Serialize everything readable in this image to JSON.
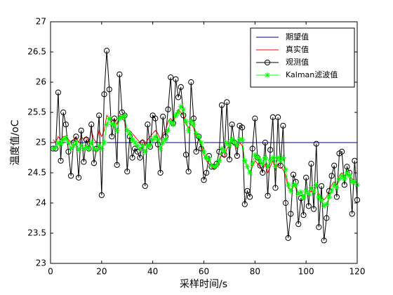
{
  "chart_data": {
    "type": "line",
    "xlabel": "采样时间/s",
    "ylabel": "温度值/oC",
    "x": [
      1,
      2,
      3,
      4,
      5,
      6,
      7,
      8,
      9,
      10,
      11,
      12,
      13,
      14,
      15,
      16,
      17,
      18,
      19,
      20,
      21,
      22,
      23,
      24,
      25,
      26,
      27,
      28,
      29,
      30,
      31,
      32,
      33,
      34,
      35,
      36,
      37,
      38,
      39,
      40,
      41,
      42,
      43,
      44,
      45,
      46,
      47,
      48,
      49,
      50,
      51,
      52,
      53,
      54,
      55,
      56,
      57,
      58,
      59,
      60,
      61,
      62,
      63,
      64,
      65,
      66,
      67,
      68,
      69,
      70,
      71,
      72,
      73,
      74,
      75,
      76,
      77,
      78,
      79,
      80,
      81,
      82,
      83,
      84,
      85,
      86,
      87,
      88,
      89,
      90,
      91,
      92,
      93,
      94,
      95,
      96,
      97,
      98,
      99,
      100,
      101,
      102,
      103,
      104,
      105,
      106,
      107,
      108,
      109,
      110,
      111,
      112,
      113,
      114,
      115,
      116,
      117,
      118,
      119,
      120
    ],
    "series": [
      {
        "name": "期望值",
        "color": "#00008b",
        "marker": "none",
        "values": [
          25,
          25,
          25,
          25,
          25,
          25,
          25,
          25,
          25,
          25,
          25,
          25,
          25,
          25,
          25,
          25,
          25,
          25,
          25,
          25,
          25,
          25,
          25,
          25,
          25,
          25,
          25,
          25,
          25,
          25,
          25,
          25,
          25,
          25,
          25,
          25,
          25,
          25,
          25,
          25,
          25,
          25,
          25,
          25,
          25,
          25,
          25,
          25,
          25,
          25,
          25,
          25,
          25,
          25,
          25,
          25,
          25,
          25,
          25,
          25,
          25,
          25,
          25,
          25,
          25,
          25,
          25,
          25,
          25,
          25,
          25,
          25,
          25,
          25,
          25,
          25,
          25,
          25,
          25,
          25,
          25,
          25,
          25,
          25,
          25,
          25,
          25,
          25,
          25,
          25,
          25,
          25,
          25,
          25,
          25,
          25,
          25,
          25,
          25,
          25,
          25,
          25,
          25,
          25,
          25,
          25,
          25,
          25,
          25,
          25,
          25,
          25,
          25,
          25,
          25,
          25,
          25,
          25,
          25,
          25
        ]
      },
      {
        "name": "真实值",
        "color": "#ff0000",
        "marker": "none",
        "values": [
          25.05,
          25.0,
          25.1,
          25.05,
          25.1,
          25.1,
          25.05,
          25.0,
          25.05,
          25.1,
          25.0,
          25.1,
          25.05,
          25.1,
          25.0,
          25.2,
          25.05,
          25.0,
          25.2,
          25.1,
          25.2,
          25.45,
          25.4,
          25.35,
          25.4,
          25.3,
          25.45,
          25.4,
          25.35,
          25.2,
          25.2,
          25.15,
          25.1,
          25.05,
          25.0,
          25.05,
          24.95,
          25.05,
          25.1,
          25.15,
          25.2,
          25.15,
          25.05,
          25.15,
          25.2,
          25.35,
          25.4,
          25.35,
          25.45,
          25.55,
          25.5,
          25.45,
          25.3,
          25.25,
          25.3,
          25.25,
          25.1,
          25.05,
          24.95,
          24.8,
          24.7,
          24.65,
          24.6,
          24.55,
          24.6,
          24.7,
          24.8,
          24.75,
          24.9,
          24.95,
          25.0,
          24.95,
          24.9,
          25.0,
          24.95,
          24.7,
          24.6,
          24.5,
          24.6,
          24.7,
          24.65,
          24.6,
          24.55,
          24.65,
          24.5,
          24.6,
          24.7,
          24.55,
          24.65,
          24.6,
          24.55,
          24.45,
          24.25,
          24.2,
          24.3,
          24.25,
          24.15,
          24.2,
          24.1,
          24.2,
          24.15,
          24.2,
          24.15,
          24.3,
          24.15,
          24.1,
          24.05,
          24.1,
          24.2,
          24.3,
          24.35,
          24.3,
          24.45,
          24.5,
          24.45,
          24.5,
          24.45,
          24.4,
          24.35,
          24.35
        ]
      },
      {
        "name": "观测值",
        "color": "#000000",
        "marker": "o",
        "values": [
          24.9,
          24.9,
          25.83,
          24.7,
          25.5,
          25.3,
          24.85,
          24.45,
          25.0,
          25.1,
          24.42,
          25.2,
          24.68,
          25.05,
          24.9,
          25.3,
          24.66,
          24.9,
          25.45,
          24.13,
          25.8,
          26.52,
          25.88,
          25.1,
          25.4,
          24.63,
          26.13,
          25.5,
          25.45,
          24.52,
          25.1,
          24.75,
          24.9,
          24.85,
          24.75,
          25.0,
          24.28,
          25.3,
          24.93,
          25.45,
          25.4,
          24.97,
          24.5,
          25.43,
          25.1,
          25.55,
          26.08,
          25.32,
          26.05,
          25.75,
          25.92,
          25.45,
          24.8,
          24.52,
          26.0,
          25.4,
          24.85,
          25.1,
          24.9,
          24.38,
          24.5,
          24.78,
          24.6,
          24.6,
          24.65,
          24.85,
          25.62,
          24.8,
          25.67,
          24.72,
          25.3,
          25.0,
          24.78,
          25.28,
          25.25,
          23.98,
          24.2,
          24.1,
          24.9,
          25.4,
          24.75,
          24.62,
          24.5,
          25.0,
          24.12,
          24.88,
          25.42,
          24.25,
          25.42,
          24.62,
          25.28,
          24.0,
          23.42,
          23.82,
          24.47,
          24.35,
          23.65,
          24.08,
          23.8,
          24.42,
          23.95,
          24.65,
          23.9,
          24.98,
          23.6,
          24.28,
          23.38,
          23.75,
          24.2,
          24.45,
          24.62,
          24.1,
          24.82,
          24.85,
          24.3,
          24.6,
          24.5,
          23.82,
          24.7,
          24.05
        ]
      },
      {
        "name": "Kalman滤波值",
        "color": "#00ff00",
        "marker": "*",
        "values": [
          24.9,
          24.92,
          25.0,
          24.98,
          25.05,
          25.08,
          25.0,
          24.9,
          24.95,
          25.0,
          24.88,
          24.95,
          24.9,
          24.92,
          24.9,
          25.0,
          24.9,
          24.88,
          24.95,
          24.9,
          25.0,
          25.3,
          25.4,
          25.3,
          25.3,
          25.2,
          25.4,
          25.42,
          25.45,
          25.2,
          25.15,
          25.05,
          25.0,
          24.95,
          24.9,
          24.95,
          24.85,
          24.95,
          24.95,
          25.05,
          25.1,
          25.05,
          24.9,
          25.0,
          25.05,
          25.2,
          25.35,
          25.3,
          25.45,
          25.5,
          25.6,
          25.55,
          25.35,
          25.2,
          25.35,
          25.3,
          25.15,
          25.1,
          25.0,
          24.85,
          24.75,
          24.72,
          24.62,
          24.6,
          24.62,
          24.7,
          24.9,
          24.85,
          25.0,
          24.95,
          25.05,
          25.0,
          24.95,
          25.05,
          25.05,
          24.7,
          24.6,
          24.5,
          24.65,
          24.8,
          24.75,
          24.7,
          24.65,
          24.75,
          24.6,
          24.7,
          24.75,
          24.6,
          24.75,
          24.7,
          24.75,
          24.55,
          24.3,
          24.2,
          24.3,
          24.3,
          24.15,
          24.18,
          24.1,
          24.2,
          24.15,
          24.25,
          24.18,
          24.3,
          24.1,
          24.05,
          23.95,
          23.98,
          24.1,
          24.2,
          24.3,
          24.25,
          24.4,
          24.45,
          24.4,
          24.5,
          24.45,
          24.35,
          24.35,
          24.3
        ]
      }
    ],
    "xlim": [
      0,
      120
    ],
    "xticks": [
      0,
      20,
      40,
      60,
      80,
      100,
      120
    ],
    "ylim": [
      23,
      27
    ],
    "yticks": [
      23,
      23.5,
      24,
      24.5,
      25,
      25.5,
      26,
      26.5,
      27
    ],
    "legend": "upper right",
    "grid": false
  }
}
